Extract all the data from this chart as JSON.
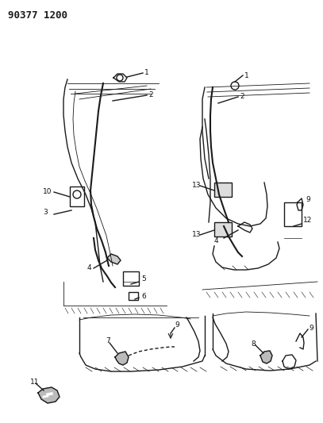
{
  "title": "90377 1200",
  "background_color": "#ffffff",
  "fig_width": 4.07,
  "fig_height": 5.33,
  "dpi": 100,
  "title_fontsize": 9,
  "title_fontweight": "bold",
  "line_color": "#1a1a1a",
  "label_color": "#111111"
}
